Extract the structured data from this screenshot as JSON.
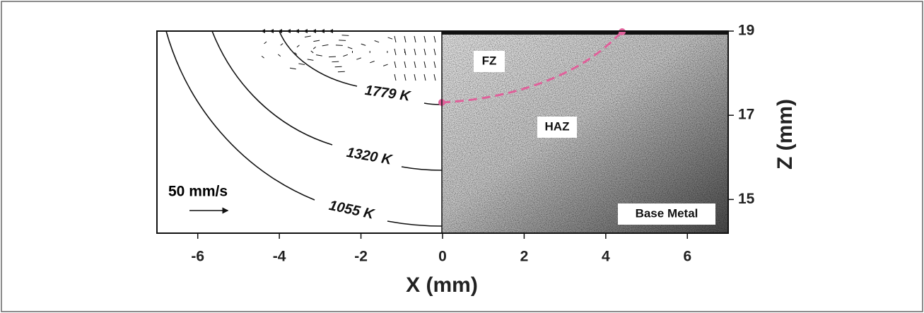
{
  "chart_data": {
    "type": "contour-image",
    "xlabel": "X (mm)",
    "ylabel": "Z (mm)",
    "xlim": [
      -7,
      7
    ],
    "xticks": [
      -6,
      -4,
      -2,
      0,
      2,
      4,
      6
    ],
    "ylim": [
      14.2,
      19
    ],
    "yticks": [
      15,
      17,
      19
    ],
    "contour_labels": [
      "1779 K",
      "1320 K",
      "1055 K"
    ],
    "region_labels": [
      "FZ",
      "HAZ",
      "Base Metal"
    ],
    "vector_scale_label": "50 mm/s"
  }
}
